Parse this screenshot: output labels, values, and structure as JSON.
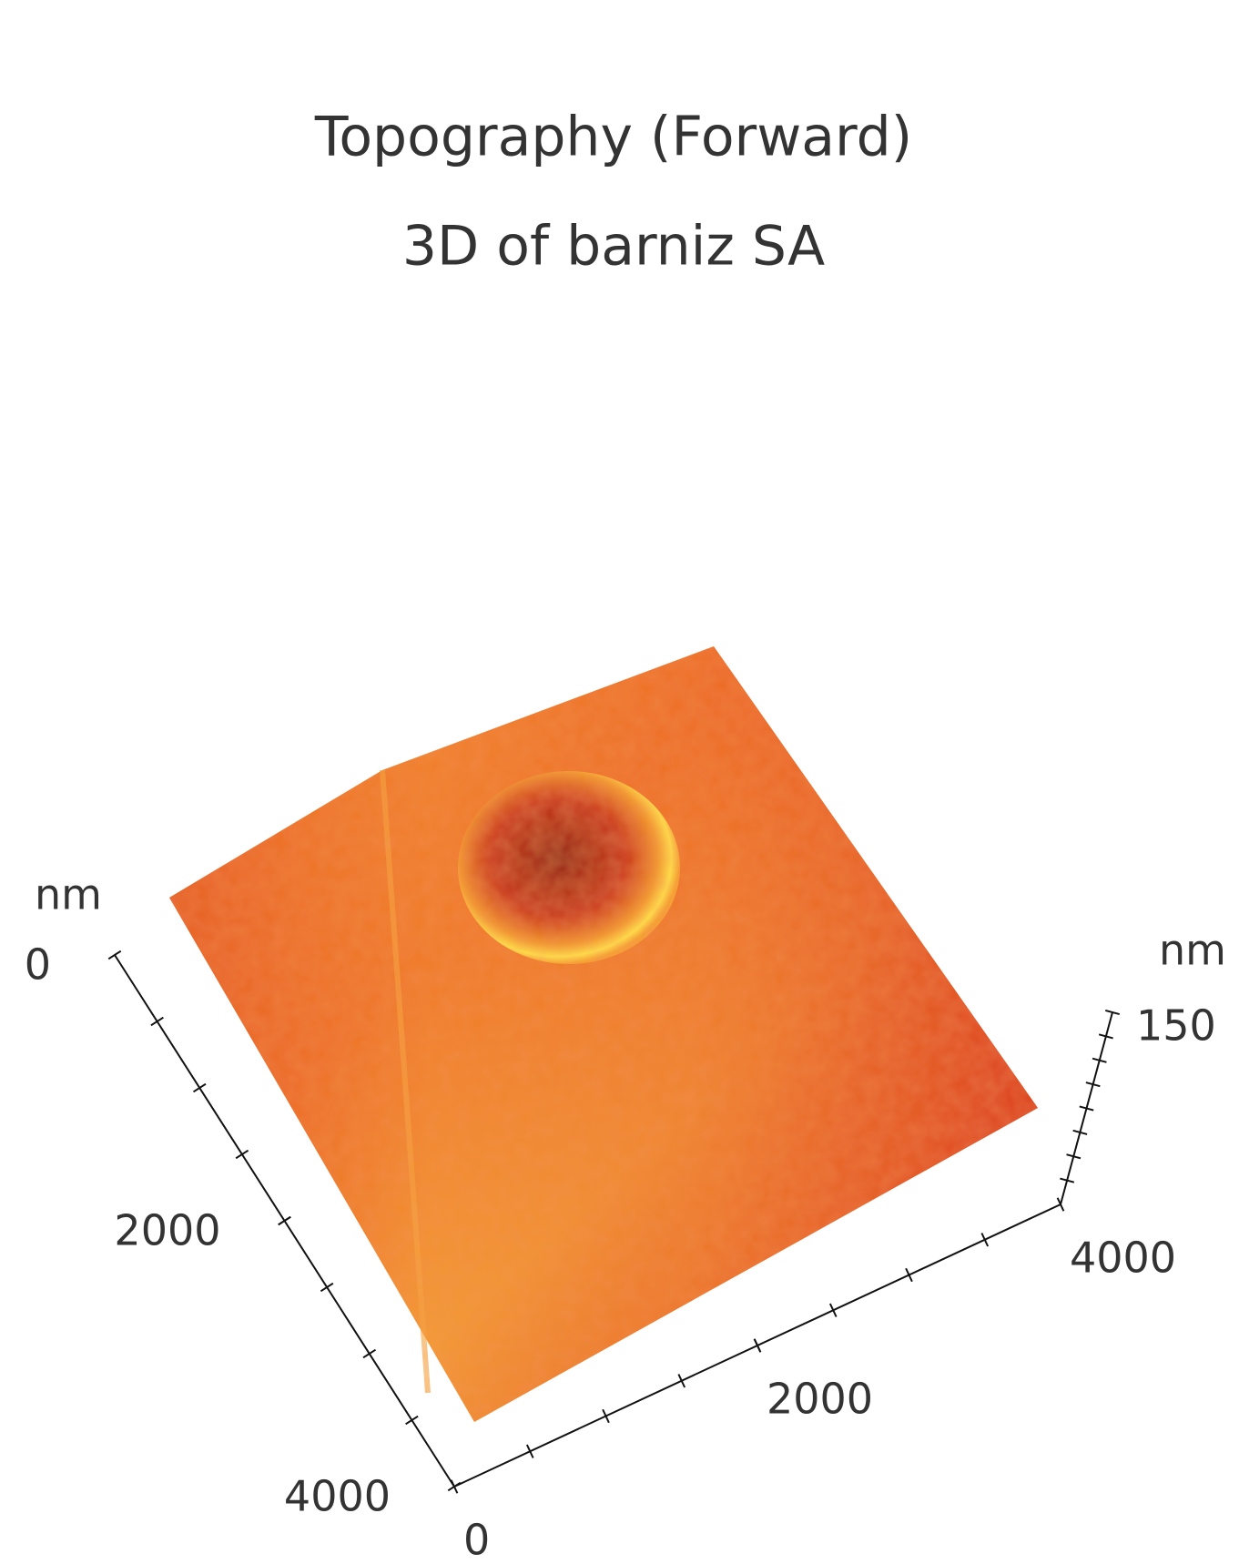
{
  "chart_data": {
    "type": "surface3d",
    "title": "Topography (Forward)",
    "subtitle": "3D of barniz SA",
    "y_unit": "nm",
    "ylim": [
      0,
      4000
    ],
    "yticks": [
      0,
      2000,
      4000
    ],
    "xlim": [
      0,
      4000
    ],
    "xticks": [
      0,
      2000,
      4000
    ],
    "z_unit": "nm",
    "zlim": [
      0,
      150
    ],
    "zticks": [
      150
    ]
  }
}
